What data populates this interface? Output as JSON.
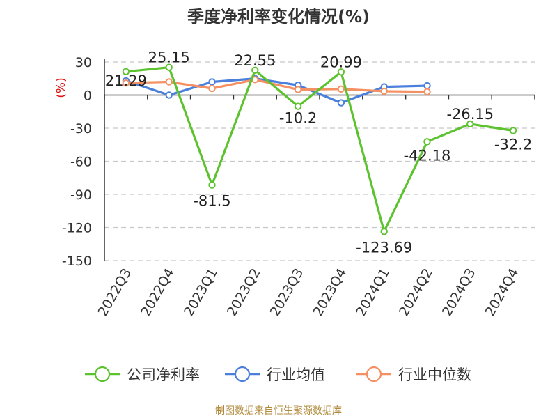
{
  "chart_data": {
    "type": "line",
    "title": "季度净利率变化情况(%)",
    "ylabel": "(%)",
    "xlabel": "",
    "ylim": [
      -150,
      30
    ],
    "yticks": [
      30,
      0,
      -30,
      -60,
      -90,
      -120,
      -150
    ],
    "grid": true,
    "legend_position": "bottom",
    "categories": [
      "2022Q3",
      "2022Q4",
      "2023Q1",
      "2023Q2",
      "2023Q3",
      "2023Q4",
      "2024Q1",
      "2024Q2",
      "2024Q3",
      "2024Q4"
    ],
    "series": [
      {
        "name": "公司净利率",
        "color": "#5cc22e",
        "values": [
          21.29,
          25.15,
          -81.5,
          22.55,
          -10.2,
          20.99,
          -123.69,
          -42.18,
          -26.15,
          -32.2
        ],
        "labels": [
          "21.29",
          "25.15",
          "-81.5",
          "22.55",
          "-10.2",
          "20.99",
          "-123.69",
          "-42.18",
          "-26.15",
          "-32.2"
        ]
      },
      {
        "name": "行业均值",
        "color": "#4a7fdc",
        "values": [
          13,
          0,
          12,
          15,
          9,
          -7,
          7.5,
          8.5,
          null,
          null
        ]
      },
      {
        "name": "行业中位数",
        "color": "#f59062",
        "values": [
          11,
          12,
          6,
          14,
          5,
          5.5,
          3.5,
          3,
          null,
          null
        ]
      }
    ],
    "source": "制图数据来自恒生聚源数据库"
  }
}
